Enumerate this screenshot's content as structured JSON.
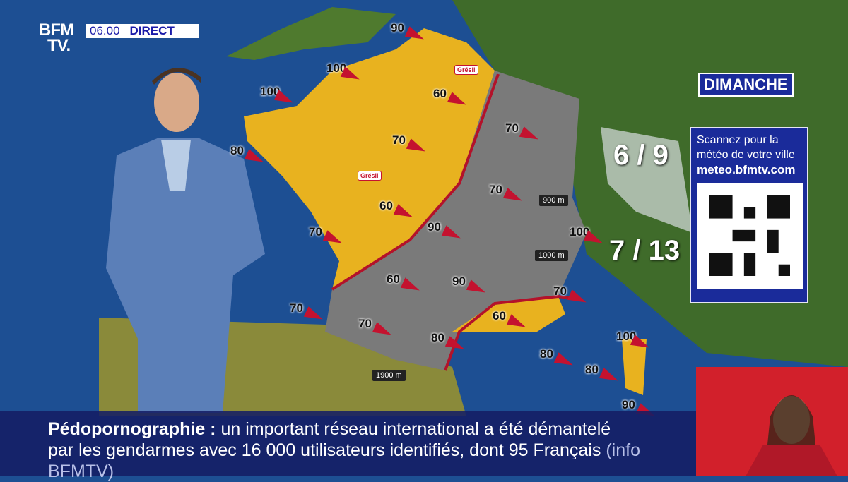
{
  "broadcast": {
    "logo": "BFM TV.",
    "logo_line1": "BFM",
    "logo_line2": "TV.",
    "time": "06.00",
    "live_label": "DIRECT"
  },
  "weather": {
    "day": "DIMANCHE",
    "qr_panel": {
      "line1": "Scannez pour la",
      "line2": "météo de votre ville",
      "url": "meteo.bfmtv.com"
    },
    "temperatures": [
      {
        "label": "6 / 9"
      },
      {
        "label": "7 / 13"
      }
    ],
    "mountain_labels": [
      "900 m",
      "1000 m",
      "1900 m"
    ],
    "precip_labels": [
      "Grésil",
      "Grésil"
    ],
    "wind_gusts_kmh": [
      90,
      100,
      100,
      80,
      60,
      70,
      70,
      70,
      60,
      90,
      70,
      100,
      60,
      90,
      70,
      70,
      70,
      60,
      80,
      100,
      80,
      80,
      90
    ],
    "colors": {
      "sun_cloud_zone": "#e8b21f",
      "rain_zone": "#7a7a7a",
      "front": "#b3122a",
      "wind_arrow": "#c4122f",
      "panel": "#1a2b9a"
    }
  },
  "ticker": {
    "headline": "Pédopornographie :",
    "line1": "un important réseau international a été démantelé",
    "line2": "par les gendarmes avec 16 000 utilisateurs identifiés, dont 95 Français",
    "source": "(info BFMTV)"
  }
}
